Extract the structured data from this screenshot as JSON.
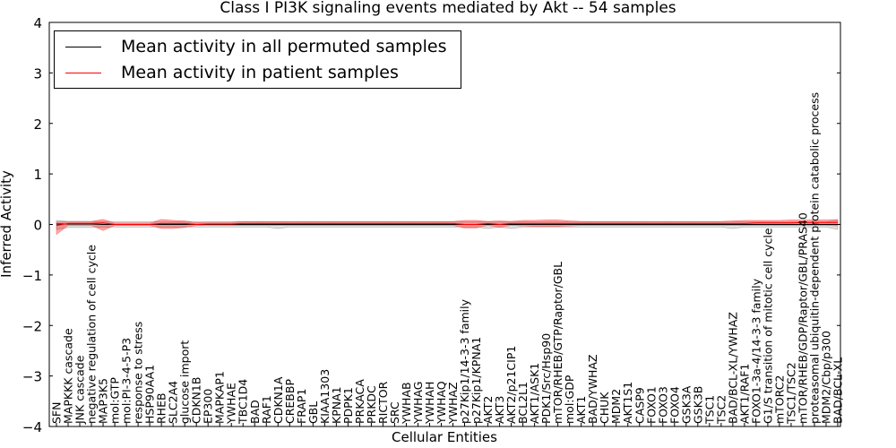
{
  "chart_data": {
    "type": "line",
    "title": "Class I PI3K signaling events mediated by Akt -- 54 samples",
    "xlabel": "Cellular Entities",
    "ylabel": "Inferred Activity",
    "ylim": [
      -4,
      4
    ],
    "yticks": [
      "−4",
      "−3",
      "−2",
      "−1",
      "0",
      "1",
      "2",
      "3",
      "4"
    ],
    "grid": false,
    "legend_position": "top-left",
    "categories": [
      "SFN",
      "MAPKKK cascade",
      "JNK cascade",
      "negative regulation of cell cycle",
      "MAP3K5",
      "mol:GTP",
      "mol:PI-3-4-5-P3",
      "response to stress",
      "HSP90AA1",
      "RHEB",
      "SLC2A4",
      "glucose import",
      "CDKN1B",
      "EP300",
      "MAPKAP1",
      "YWHAE",
      "TBC1D4",
      "BAD",
      "RAF1",
      "CDKN1A",
      "CREBBP",
      "FRAP1",
      "GBL",
      "KIAA1303",
      "KPNA1",
      "PDPK1",
      "PRKACA",
      "PRKDC",
      "RICTOR",
      "SRC",
      "YWHAB",
      "YWHAG",
      "YWHAH",
      "YWHAQ",
      "YWHAZ",
      "p27Kip1/14-3-3 family",
      "p27Kip1/KPNA1",
      "AKT2",
      "AKT3",
      "AKT2/p21CIP1",
      "BCL2L1",
      "AKT1/ASK1",
      "PDK1/Src/Hsp90",
      "mTOR/RHEB/GTP/Raptor/GBL",
      "mol:GDP",
      "AKT1",
      "BAD/YWHAZ",
      "CHUK",
      "MDM2",
      "AKT1S1",
      "CASP9",
      "FOXO1",
      "FOXO3",
      "FOXO4",
      "GSK3A",
      "GSK3B",
      "TSC1",
      "TSC2",
      "BAD/BCL-XL/YWHAZ",
      "AKT1/RAF1",
      "FOXO1-3a-4/14-3-3 family",
      "G1/S transition of mitotic cell cycle",
      "mTORC2",
      "TSC1/TSC2",
      "mTOR/RHEB/GDP/Raptor/GBL/PRAS40",
      "proteasomal ubiquitin-dependent protein catabolic process",
      "MDM2/Cbp/p300",
      "BAD/BCL-XL"
    ],
    "series": [
      {
        "name": "Mean activity in all permuted samples",
        "color": "#000000",
        "values": [
          0.01,
          0.01,
          0.01,
          0.01,
          0.0,
          0.0,
          0.0,
          0.0,
          0.0,
          0.0,
          0.0,
          0.0,
          0.0,
          0.0,
          0.0,
          0.0,
          0.0,
          0.0,
          0.0,
          0.0,
          0.0,
          0.0,
          0.0,
          0.0,
          0.0,
          0.0,
          0.0,
          0.0,
          0.0,
          0.0,
          0.0,
          0.0,
          0.0,
          0.0,
          0.0,
          0.0,
          0.0,
          0.0,
          0.0,
          0.0,
          0.0,
          0.0,
          0.0,
          0.0,
          0.0,
          0.0,
          0.0,
          0.0,
          0.0,
          0.0,
          0.0,
          0.0,
          0.0,
          0.0,
          0.0,
          0.0,
          0.0,
          0.0,
          0.0,
          0.0,
          0.0,
          0.0,
          0.0,
          0.0,
          0.0,
          0.0,
          0.0,
          0.0
        ],
        "band_low": [
          -0.1,
          -0.06,
          -0.06,
          -0.06,
          -0.06,
          -0.05,
          -0.05,
          -0.05,
          -0.05,
          -0.05,
          -0.05,
          -0.05,
          -0.05,
          -0.05,
          -0.05,
          -0.05,
          -0.05,
          -0.05,
          -0.05,
          -0.08,
          -0.05,
          -0.05,
          -0.05,
          -0.05,
          -0.05,
          -0.05,
          -0.05,
          -0.05,
          -0.05,
          -0.05,
          -0.05,
          -0.05,
          -0.05,
          -0.05,
          -0.05,
          -0.05,
          -0.05,
          -0.08,
          -0.05,
          -0.08,
          -0.05,
          -0.05,
          -0.05,
          -0.05,
          -0.05,
          -0.05,
          -0.05,
          -0.05,
          -0.05,
          -0.05,
          -0.05,
          -0.05,
          -0.05,
          -0.05,
          -0.05,
          -0.05,
          -0.05,
          -0.05,
          -0.08,
          -0.05,
          -0.05,
          -0.05,
          -0.05,
          -0.05,
          -0.05,
          -0.05,
          -0.05,
          -0.1
        ],
        "band_high": [
          0.08,
          0.06,
          0.06,
          0.06,
          0.06,
          0.05,
          0.05,
          0.05,
          0.05,
          0.05,
          0.05,
          0.05,
          0.05,
          0.05,
          0.05,
          0.05,
          0.05,
          0.05,
          0.05,
          0.05,
          0.05,
          0.05,
          0.05,
          0.05,
          0.05,
          0.05,
          0.05,
          0.05,
          0.05,
          0.05,
          0.05,
          0.05,
          0.05,
          0.05,
          0.05,
          0.05,
          0.05,
          0.05,
          0.05,
          0.05,
          0.05,
          0.05,
          0.05,
          0.05,
          0.05,
          0.05,
          0.05,
          0.05,
          0.05,
          0.05,
          0.05,
          0.05,
          0.05,
          0.05,
          0.05,
          0.05,
          0.05,
          0.05,
          0.05,
          0.05,
          0.05,
          0.05,
          0.05,
          0.05,
          0.05,
          0.05,
          0.05,
          0.08
        ]
      },
      {
        "name": "Mean activity in patient samples",
        "color": "#ff0000",
        "values": [
          -0.02,
          0.02,
          0.02,
          0.02,
          0.03,
          0.0,
          0.0,
          0.0,
          0.0,
          0.02,
          0.02,
          0.02,
          0.0,
          0.01,
          0.01,
          0.01,
          0.02,
          0.02,
          0.02,
          0.02,
          0.02,
          0.02,
          0.02,
          0.02,
          0.02,
          0.02,
          0.02,
          0.02,
          0.02,
          0.02,
          0.02,
          0.02,
          0.02,
          0.02,
          0.02,
          0.0,
          0.0,
          0.02,
          0.0,
          0.02,
          0.02,
          0.02,
          0.02,
          0.02,
          0.02,
          0.02,
          0.02,
          0.02,
          0.02,
          0.02,
          0.02,
          0.02,
          0.02,
          0.02,
          0.02,
          0.02,
          0.02,
          0.02,
          0.02,
          0.02,
          0.03,
          0.03,
          0.03,
          0.03,
          0.04,
          0.04,
          0.04,
          0.04
        ],
        "band_low": [
          -0.2,
          -0.02,
          -0.02,
          -0.02,
          -0.12,
          -0.02,
          -0.02,
          -0.02,
          -0.02,
          -0.08,
          -0.08,
          -0.06,
          -0.02,
          -0.02,
          -0.02,
          -0.02,
          -0.02,
          -0.02,
          -0.02,
          -0.02,
          -0.02,
          -0.02,
          -0.02,
          -0.02,
          -0.02,
          -0.02,
          -0.02,
          -0.02,
          -0.02,
          -0.02,
          -0.02,
          -0.02,
          -0.02,
          -0.02,
          -0.02,
          -0.07,
          -0.07,
          -0.02,
          -0.06,
          -0.02,
          -0.03,
          -0.04,
          -0.04,
          -0.04,
          -0.03,
          -0.02,
          -0.02,
          -0.02,
          -0.02,
          -0.02,
          -0.02,
          -0.02,
          -0.02,
          -0.02,
          -0.02,
          -0.02,
          -0.02,
          -0.02,
          -0.02,
          -0.02,
          -0.02,
          -0.02,
          -0.02,
          -0.02,
          -0.02,
          -0.02,
          -0.02,
          -0.03
        ],
        "band_high": [
          0.05,
          0.06,
          0.06,
          0.06,
          0.1,
          0.03,
          0.03,
          0.03,
          0.03,
          0.1,
          0.08,
          0.07,
          0.04,
          0.05,
          0.05,
          0.05,
          0.06,
          0.06,
          0.06,
          0.06,
          0.06,
          0.06,
          0.06,
          0.06,
          0.06,
          0.06,
          0.06,
          0.06,
          0.06,
          0.06,
          0.06,
          0.06,
          0.06,
          0.06,
          0.06,
          0.08,
          0.08,
          0.06,
          0.07,
          0.06,
          0.08,
          0.08,
          0.09,
          0.09,
          0.07,
          0.06,
          0.06,
          0.06,
          0.06,
          0.06,
          0.06,
          0.06,
          0.06,
          0.06,
          0.06,
          0.06,
          0.06,
          0.06,
          0.07,
          0.08,
          0.08,
          0.08,
          0.08,
          0.09,
          0.09,
          0.09,
          0.09,
          0.1
        ]
      }
    ]
  }
}
